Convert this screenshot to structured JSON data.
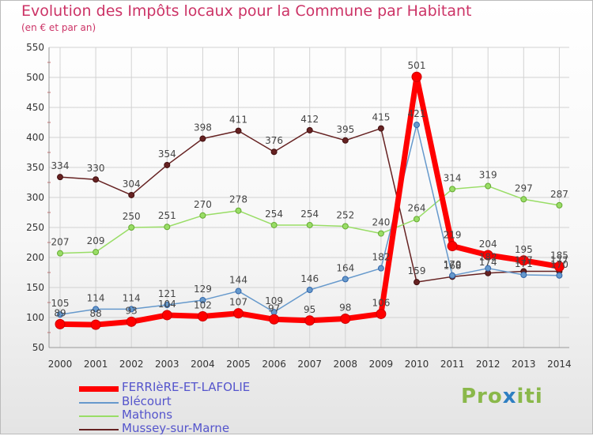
{
  "title": "Evolution des Impôts locaux pour la Commune par Habitant",
  "subtitle": "(en € et par an)",
  "logo": {
    "part1": "Pro",
    "part2": "x",
    "part3": "iti"
  },
  "chart_data": {
    "type": "line",
    "title": "Evolution des Impôts locaux pour la Commune par Habitant",
    "subtitle": "(en € et par an)",
    "xlabel": "",
    "ylabel": "",
    "ylim": [
      50,
      550
    ],
    "yticks": [
      50,
      100,
      150,
      200,
      250,
      300,
      350,
      400,
      450,
      500,
      550
    ],
    "grid": true,
    "legend": "bottom-left",
    "categories": [
      "2000",
      "2001",
      "2002",
      "2003",
      "2004",
      "2005",
      "2006",
      "2007",
      "2008",
      "2009",
      "2010",
      "2011",
      "2012",
      "2013",
      "2014"
    ],
    "series": [
      {
        "name": "FERRIèRE-ET-LAFOLIE",
        "color": "#ff0000",
        "values": [
          89,
          88,
          93,
          104,
          102,
          107,
          97,
          95,
          98,
          106,
          501,
          219,
          204,
          195,
          185
        ]
      },
      {
        "name": "Blécourt",
        "color": "#6699cc",
        "values": [
          105,
          114,
          114,
          121,
          129,
          144,
          109,
          146,
          164,
          182,
          421,
          170,
          182,
          171,
          170
        ]
      },
      {
        "name": "Mathons",
        "color": "#99dd66",
        "values": [
          207,
          209,
          250,
          251,
          270,
          278,
          254,
          254,
          252,
          240,
          264,
          314,
          319,
          297,
          287
        ]
      },
      {
        "name": "Mussey-sur-Marne",
        "color": "#662222",
        "values": [
          334,
          330,
          304,
          354,
          398,
          411,
          376,
          412,
          395,
          415,
          159,
          168,
          174,
          177,
          177
        ]
      }
    ]
  }
}
